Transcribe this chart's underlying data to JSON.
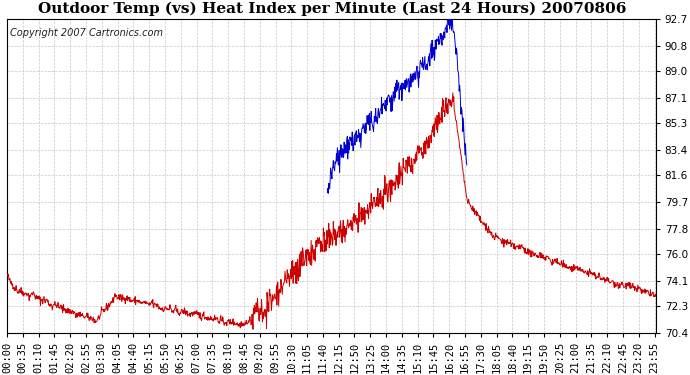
{
  "title": "Outdoor Temp (vs) Heat Index per Minute (Last 24 Hours) 20070806",
  "copyright_text": "Copyright 2007 Cartronics.com",
  "y_ticks": [
    70.4,
    72.3,
    74.1,
    76.0,
    77.8,
    79.7,
    81.6,
    83.4,
    85.3,
    87.1,
    89.0,
    90.8,
    92.7
  ],
  "ylim": [
    70.4,
    92.7
  ],
  "bg_color": "#ffffff",
  "plot_bg_color": "#ffffff",
  "grid_color": "#c8c8c8",
  "red_color": "#cc0000",
  "blue_color": "#0000cc",
  "title_fontsize": 11,
  "copyright_fontsize": 7,
  "tick_fontsize": 7.5,
  "tick_interval_minutes": 35,
  "n_minutes": 1440
}
